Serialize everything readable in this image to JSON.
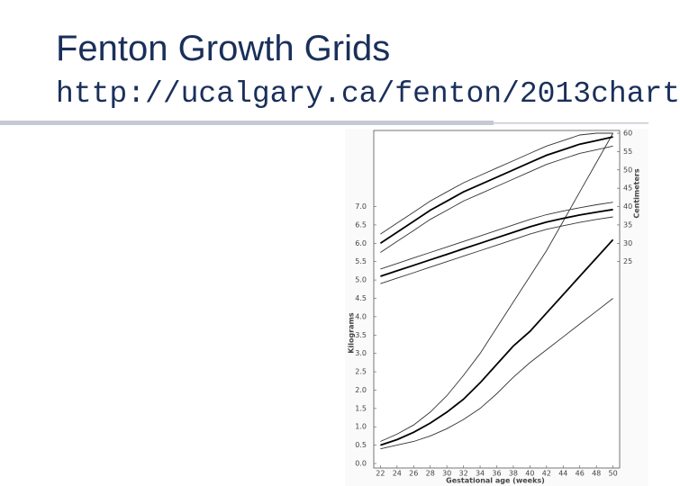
{
  "header": {
    "title": "Fenton Growth Grids",
    "subtitle": "http://ucalgary.ca/fenton/2013chart"
  },
  "chart_data": {
    "type": "line",
    "x_label": "Gestational age (weeks)",
    "y_label": "Kilograms",
    "y2_label": "Centimeters",
    "x": [
      22,
      24,
      26,
      28,
      30,
      32,
      34,
      36,
      38,
      40,
      42,
      44,
      46,
      48,
      50
    ],
    "xlim": [
      21.2,
      50.8
    ],
    "xticks": [
      22,
      24,
      26,
      28,
      30,
      32,
      34,
      36,
      38,
      40,
      42,
      44,
      46,
      48,
      50
    ],
    "ylim": [
      0,
      9
    ],
    "yticks": [
      {
        "value": 0,
        "label": "0.0"
      },
      0.5,
      {
        "value": 1,
        "label": "1.0"
      },
      1.5,
      {
        "value": 2,
        "label": "2.0"
      },
      2.5,
      {
        "value": 3,
        "label": "3.0"
      },
      3.5,
      {
        "value": 4,
        "label": "4.0"
      },
      4.5,
      {
        "value": 5,
        "label": "5.0"
      },
      5.5,
      {
        "value": 6,
        "label": "6.0"
      },
      6.5,
      {
        "value": 7,
        "label": "7.0"
      }
    ],
    "y2lim": [
      -30,
      60
    ],
    "y2ticks": [
      25,
      30,
      35,
      40,
      45,
      50,
      55,
      60
    ],
    "series": [
      {
        "color": "#333333",
        "values": [
          0.4,
          0.5,
          0.6,
          0.75,
          0.95,
          1.2,
          1.5,
          1.9,
          2.35,
          2.75,
          3.1,
          3.45,
          3.8,
          4.15,
          4.5
        ]
      },
      {
        "color": "#000000",
        "values": [
          0.5,
          0.65,
          0.85,
          1.1,
          1.4,
          1.75,
          2.2,
          2.7,
          3.2,
          3.6,
          4.1,
          4.6,
          5.1,
          5.6,
          6.1
        ]
      },
      {
        "color": "#333333",
        "values": [
          0.6,
          0.8,
          1.05,
          1.4,
          1.85,
          2.4,
          3.0,
          3.7,
          4.4,
          5.1,
          5.8,
          6.6,
          7.4,
          8.2,
          9.0
        ]
      },
      {
        "color": "#333333",
        "axis": "y2",
        "values": [
          27.5,
          30.5,
          33.5,
          36.5,
          39,
          41.5,
          43.5,
          45.5,
          47.5,
          49.5,
          51.5,
          53,
          54.5,
          55.5,
          56.5
        ]
      },
      {
        "color": "#000000",
        "axis": "y2",
        "values": [
          30,
          33,
          36,
          39,
          41.5,
          44,
          46,
          48,
          50,
          52,
          54,
          55.5,
          57,
          58,
          59
        ]
      },
      {
        "color": "#333333",
        "axis": "y2",
        "values": [
          32.5,
          35.5,
          38.5,
          41.5,
          44,
          46.5,
          48.5,
          50.5,
          52.5,
          54.5,
          56.5,
          58,
          59.5,
          60,
          60
        ]
      },
      {
        "color": "#333333",
        "axis": "y2",
        "values": [
          19,
          20.5,
          22,
          23.5,
          25,
          26.5,
          28,
          29.5,
          31,
          32.5,
          33.8,
          34.8,
          35.7,
          36.5,
          37.2
        ]
      },
      {
        "color": "#000000",
        "axis": "y2",
        "values": [
          21,
          22.5,
          24,
          25.5,
          27,
          28.5,
          30,
          31.5,
          33,
          34.5,
          35.8,
          36.8,
          37.7,
          38.5,
          39.2
        ]
      },
      {
        "color": "#333333",
        "axis": "y2",
        "values": [
          23,
          24.5,
          26,
          27.5,
          29,
          30.5,
          32,
          33.5,
          35,
          36.5,
          37.8,
          38.8,
          39.7,
          40.5,
          41.2
        ]
      }
    ]
  }
}
